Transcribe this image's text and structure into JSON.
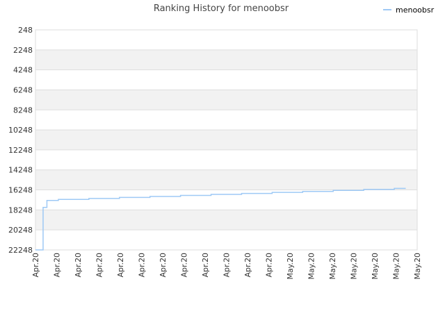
{
  "chart_data": {
    "type": "line",
    "title": "Ranking History for menoobsr",
    "xlabel": "",
    "ylabel": "",
    "y_inverted": true,
    "ylim": [
      248,
      22248
    ],
    "y_ticks": [
      248,
      2248,
      4248,
      6248,
      8248,
      10248,
      12248,
      14248,
      16248,
      18248,
      20248,
      22248
    ],
    "x_tick_labels": [
      "Apr.20",
      "Apr.20",
      "Apr.20",
      "Apr.20",
      "Apr.20",
      "Apr.20",
      "Apr.20",
      "Apr.20",
      "Apr.20",
      "Apr.20",
      "Apr.20",
      "Apr.20",
      "May.20",
      "May.20",
      "May.20",
      "May.20",
      "May.20",
      "May.20",
      "May.20"
    ],
    "legend": {
      "position": "top-right",
      "label": "menoobsr"
    },
    "grid": true,
    "series": [
      {
        "name": "menoobsr",
        "color": "#9ec9f5",
        "x": [
          0,
          0.02,
          0.03,
          0.06,
          0.14,
          0.22,
          0.3,
          0.38,
          0.46,
          0.54,
          0.62,
          0.7,
          0.78,
          0.86,
          0.94,
          0.97
        ],
        "y": [
          22248,
          18000,
          17300,
          17200,
          17100,
          17000,
          16900,
          16800,
          16700,
          16600,
          16500,
          16400,
          16300,
          16200,
          16100,
          16100
        ]
      }
    ]
  },
  "colors": {
    "band_alt": "#f2f2f2",
    "band": "#ffffff",
    "grid": "#dddddd",
    "axis_text": "#333333",
    "title_text": "#444444"
  }
}
